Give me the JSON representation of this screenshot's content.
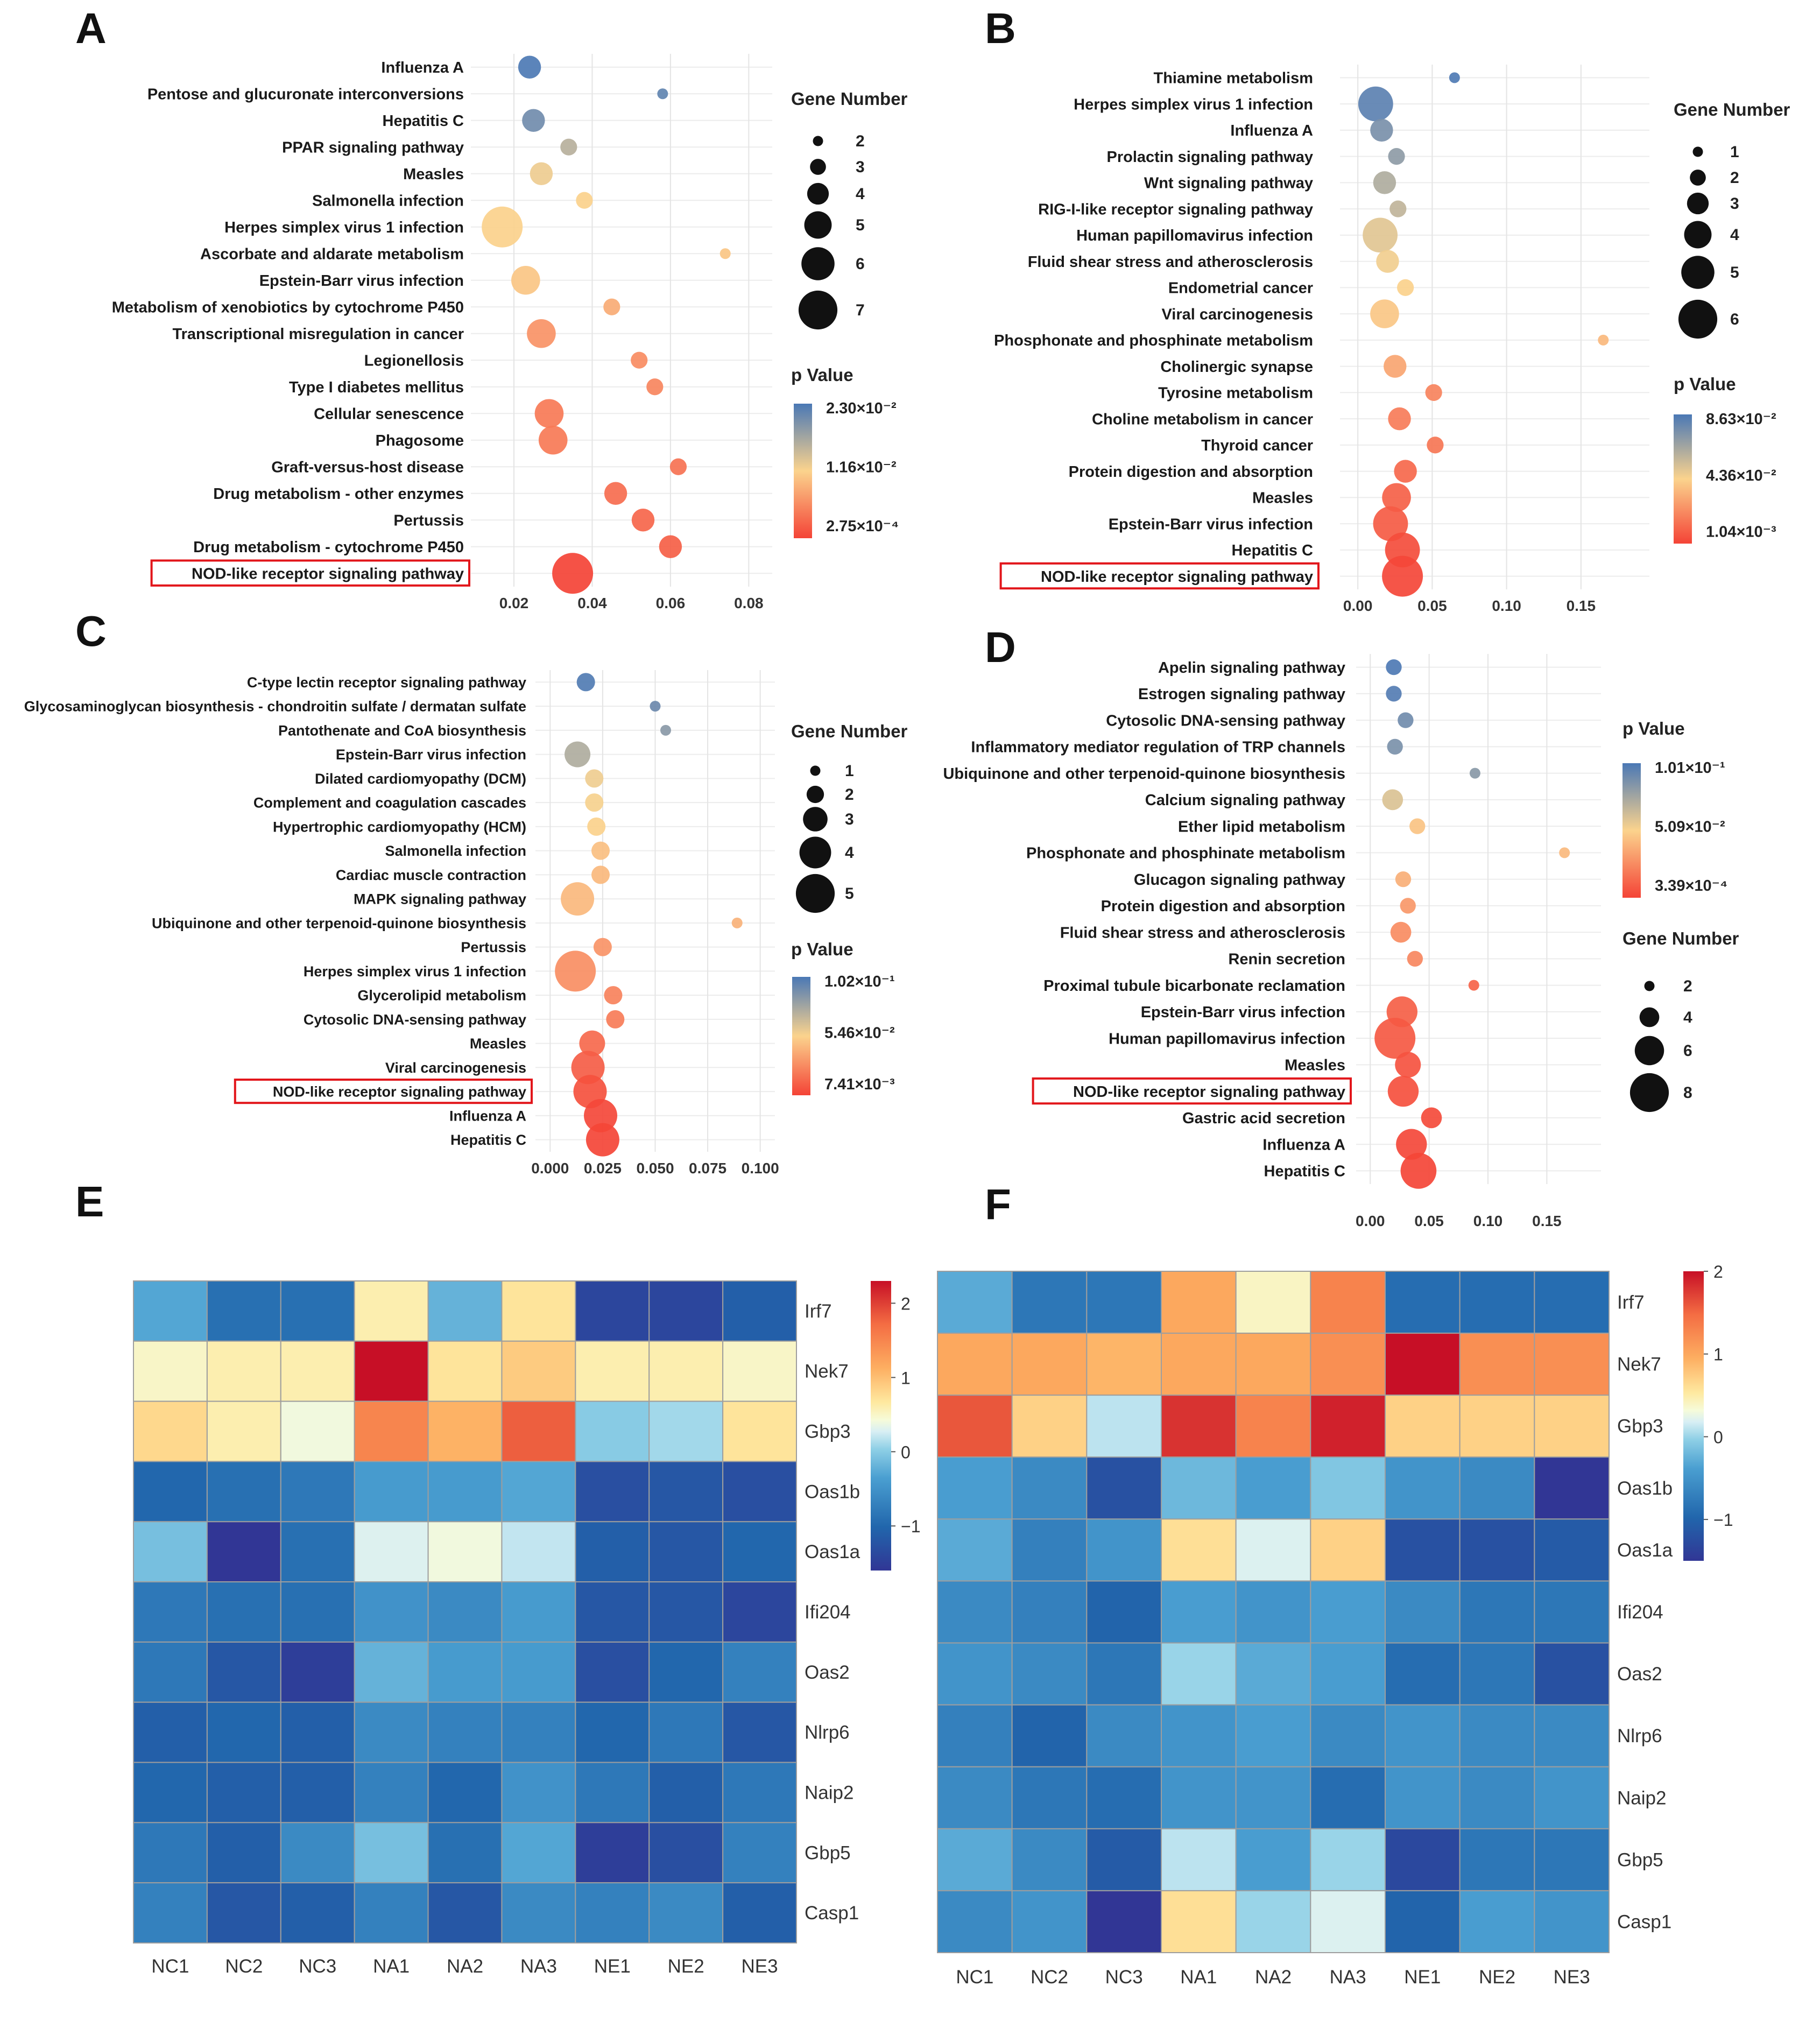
{
  "figure": {
    "panel_letters": [
      "A",
      "B",
      "C",
      "D",
      "E",
      "F"
    ]
  },
  "colors": {
    "low_p": "#f44336",
    "mid_p": "#fbd38d",
    "high_p": "#4a78b5",
    "highlight_box": "#e2161b"
  },
  "chart_data": [
    {
      "panel": "A",
      "type": "scatter",
      "xlabel": "",
      "ylabel": "",
      "xlim": [
        0.009,
        0.086
      ],
      "xticks": [
        0.02,
        0.04,
        0.06,
        0.08
      ],
      "xtick_labels": [
        "0.02",
        "0.04",
        "0.06",
        "0.08"
      ],
      "color_scale": {
        "title": "p Value",
        "min": 0.000275,
        "max": 0.023,
        "labels": [
          "2.30×10⁻²",
          "1.16×10⁻²",
          "2.75×10⁻⁴"
        ]
      },
      "size_scale": {
        "title": "Gene Number",
        "min": 2,
        "max": 7,
        "values": [
          2,
          3,
          4,
          5,
          6,
          7
        ]
      },
      "highlighted": "NOD-like receptor signaling pathway",
      "points": [
        {
          "label": "Influenza A",
          "x": 0.024,
          "p": 0.0228,
          "genes": 4
        },
        {
          "label": "Pentose and glucuronate interconversions",
          "x": 0.058,
          "p": 0.0215,
          "genes": 2
        },
        {
          "label": "Hepatitis C",
          "x": 0.025,
          "p": 0.0205,
          "genes": 4
        },
        {
          "label": "PPAR signaling pathway",
          "x": 0.034,
          "p": 0.016,
          "genes": 3
        },
        {
          "label": "Measles",
          "x": 0.027,
          "p": 0.0125,
          "genes": 4
        },
        {
          "label": "Salmonella infection",
          "x": 0.038,
          "p": 0.0115,
          "genes": 3
        },
        {
          "label": "Herpes simplex virus 1 infection",
          "x": 0.017,
          "p": 0.0115,
          "genes": 7
        },
        {
          "label": "Ascorbate and aldarate metabolism",
          "x": 0.074,
          "p": 0.0105,
          "genes": 2
        },
        {
          "label": "Epstein-Barr virus infection",
          "x": 0.023,
          "p": 0.0105,
          "genes": 5
        },
        {
          "label": "Metabolism of xenobiotics by cytochrome P450",
          "x": 0.045,
          "p": 0.0085,
          "genes": 3
        },
        {
          "label": "Transcriptional misregulation in cancer",
          "x": 0.027,
          "p": 0.0065,
          "genes": 5
        },
        {
          "label": "Legionellosis",
          "x": 0.052,
          "p": 0.006,
          "genes": 3
        },
        {
          "label": "Type I diabetes mellitus",
          "x": 0.056,
          "p": 0.0055,
          "genes": 3
        },
        {
          "label": "Cellular senescence",
          "x": 0.029,
          "p": 0.0045,
          "genes": 5
        },
        {
          "label": "Phagosome",
          "x": 0.03,
          "p": 0.0045,
          "genes": 5
        },
        {
          "label": "Graft-versus-host disease",
          "x": 0.062,
          "p": 0.004,
          "genes": 3
        },
        {
          "label": "Drug metabolism - other enzymes",
          "x": 0.046,
          "p": 0.0035,
          "genes": 4
        },
        {
          "label": "Pertussis",
          "x": 0.053,
          "p": 0.003,
          "genes": 4
        },
        {
          "label": "Drug metabolism - cytochrome P450",
          "x": 0.06,
          "p": 0.0025,
          "genes": 4
        },
        {
          "label": "NOD-like receptor signaling pathway",
          "x": 0.035,
          "p": 0.0003,
          "genes": 7
        }
      ]
    },
    {
      "panel": "B",
      "type": "scatter",
      "xlabel": "",
      "ylabel": "",
      "xlim": [
        -0.012,
        0.196
      ],
      "xticks": [
        0.0,
        0.05,
        0.1,
        0.15
      ],
      "xtick_labels": [
        "0.00",
        "0.05",
        "0.10",
        "0.15"
      ],
      "color_scale": {
        "title": "p Value",
        "min": 0.00104,
        "max": 0.0863,
        "labels": [
          "8.63×10⁻²",
          "4.36×10⁻²",
          "1.04×10⁻³"
        ]
      },
      "size_scale": {
        "title": "Gene Number",
        "min": 1,
        "max": 6,
        "values": [
          1,
          2,
          3,
          4,
          5,
          6
        ]
      },
      "highlighted": "NOD-like receptor signaling pathway",
      "points": [
        {
          "label": "Thiamine metabolism",
          "x": 0.065,
          "p": 0.085,
          "genes": 1
        },
        {
          "label": "Herpes simplex virus 1 infection",
          "x": 0.012,
          "p": 0.082,
          "genes": 5
        },
        {
          "label": "Influenza A",
          "x": 0.016,
          "p": 0.075,
          "genes": 3
        },
        {
          "label": "Prolactin signaling pathway",
          "x": 0.026,
          "p": 0.07,
          "genes": 2
        },
        {
          "label": "Wnt signaling pathway",
          "x": 0.018,
          "p": 0.062,
          "genes": 3
        },
        {
          "label": "RIG-I-like receptor signaling pathway",
          "x": 0.027,
          "p": 0.058,
          "genes": 2
        },
        {
          "label": "Human papillomavirus infection",
          "x": 0.015,
          "p": 0.05,
          "genes": 5
        },
        {
          "label": "Fluid shear stress and atherosclerosis",
          "x": 0.02,
          "p": 0.046,
          "genes": 3
        },
        {
          "label": "Endometrial cancer",
          "x": 0.032,
          "p": 0.043,
          "genes": 2
        },
        {
          "label": "Viral carcinogenesis",
          "x": 0.018,
          "p": 0.04,
          "genes": 4
        },
        {
          "label": "Phosphonate and phosphinate metabolism",
          "x": 0.165,
          "p": 0.036,
          "genes": 1
        },
        {
          "label": "Cholinergic synapse",
          "x": 0.025,
          "p": 0.03,
          "genes": 3
        },
        {
          "label": "Tyrosine metabolism",
          "x": 0.051,
          "p": 0.02,
          "genes": 2
        },
        {
          "label": "Choline metabolism in cancer",
          "x": 0.028,
          "p": 0.018,
          "genes": 3
        },
        {
          "label": "Thyroid cancer",
          "x": 0.052,
          "p": 0.016,
          "genes": 2
        },
        {
          "label": "Protein digestion and absorption",
          "x": 0.032,
          "p": 0.012,
          "genes": 3
        },
        {
          "label": "Measles",
          "x": 0.026,
          "p": 0.01,
          "genes": 4
        },
        {
          "label": "Epstein-Barr virus infection",
          "x": 0.022,
          "p": 0.008,
          "genes": 5
        },
        {
          "label": "Hepatitis C",
          "x": 0.03,
          "p": 0.004,
          "genes": 5
        },
        {
          "label": "NOD-like receptor signaling pathway",
          "x": 0.03,
          "p": 0.002,
          "genes": 6
        }
      ]
    },
    {
      "panel": "C",
      "type": "scatter",
      "xlabel": "",
      "ylabel": "",
      "xlim": [
        -0.007,
        0.107
      ],
      "xticks": [
        0.0,
        0.025,
        0.05,
        0.075,
        0.1
      ],
      "xtick_labels": [
        "0.000",
        "0.025",
        "0.050",
        "0.075",
        "0.100"
      ],
      "color_scale": {
        "title": "p Value",
        "min": 0.00741,
        "max": 0.102,
        "labels": [
          "1.02×10⁻¹",
          "5.46×10⁻²",
          "7.41×10⁻³"
        ]
      },
      "size_scale": {
        "title": "Gene Number",
        "min": 1,
        "max": 5,
        "values": [
          1,
          2,
          3,
          4,
          5
        ]
      },
      "highlighted": "NOD-like receptor signaling pathway",
      "points": [
        {
          "label": "C-type lectin receptor signaling pathway",
          "x": 0.017,
          "p": 0.1,
          "genes": 2
        },
        {
          "label": "Glycosaminoglycan biosynthesis - chondroitin sulfate / dermatan sulfate",
          "x": 0.05,
          "p": 0.093,
          "genes": 1
        },
        {
          "label": "Pantothenate and CoA biosynthesis",
          "x": 0.055,
          "p": 0.085,
          "genes": 1
        },
        {
          "label": "Epstein-Barr virus infection",
          "x": 0.013,
          "p": 0.075,
          "genes": 3
        },
        {
          "label": "Dilated cardiomyopathy (DCM)",
          "x": 0.021,
          "p": 0.058,
          "genes": 2
        },
        {
          "label": "Complement and coagulation cascades",
          "x": 0.021,
          "p": 0.056,
          "genes": 2
        },
        {
          "label": "Hypertrophic cardiomyopathy (HCM)",
          "x": 0.022,
          "p": 0.054,
          "genes": 2
        },
        {
          "label": "Salmonella infection",
          "x": 0.024,
          "p": 0.048,
          "genes": 2
        },
        {
          "label": "Cardiac muscle contraction",
          "x": 0.024,
          "p": 0.046,
          "genes": 2
        },
        {
          "label": "MAPK signaling pathway",
          "x": 0.013,
          "p": 0.046,
          "genes": 4
        },
        {
          "label": "Ubiquinone and other terpenoid-quinone biosynthesis",
          "x": 0.089,
          "p": 0.044,
          "genes": 1
        },
        {
          "label": "Pertussis",
          "x": 0.025,
          "p": 0.034,
          "genes": 2
        },
        {
          "label": "Herpes simplex virus 1 infection",
          "x": 0.012,
          "p": 0.032,
          "genes": 5
        },
        {
          "label": "Glycerolipid metabolism",
          "x": 0.03,
          "p": 0.028,
          "genes": 2
        },
        {
          "label": "Cytosolic DNA-sensing pathway",
          "x": 0.031,
          "p": 0.026,
          "genes": 2
        },
        {
          "label": "Measles",
          "x": 0.02,
          "p": 0.02,
          "genes": 3
        },
        {
          "label": "Viral carcinogenesis",
          "x": 0.018,
          "p": 0.016,
          "genes": 4
        },
        {
          "label": "NOD-like receptor signaling pathway",
          "x": 0.019,
          "p": 0.012,
          "genes": 4
        },
        {
          "label": "Influenza A",
          "x": 0.024,
          "p": 0.009,
          "genes": 4
        },
        {
          "label": "Hepatitis C",
          "x": 0.025,
          "p": 0.008,
          "genes": 4
        }
      ]
    },
    {
      "panel": "D",
      "type": "scatter",
      "xlabel": "",
      "ylabel": "",
      "xlim": [
        -0.012,
        0.196
      ],
      "xticks": [
        0.0,
        0.05,
        0.1,
        0.15
      ],
      "xtick_labels": [
        "0.00",
        "0.05",
        "0.10",
        "0.15"
      ],
      "color_scale": {
        "title": "p Value",
        "min": 0.000339,
        "max": 0.101,
        "labels": [
          "1.01×10⁻¹",
          "5.09×10⁻²",
          "3.39×10⁻⁴"
        ]
      },
      "size_scale": {
        "title": "Gene Number",
        "min": 2,
        "max": 8,
        "values": [
          2,
          4,
          6,
          8
        ]
      },
      "highlighted": "NOD-like receptor signaling pathway",
      "points": [
        {
          "label": "Apelin signaling pathway",
          "x": 0.02,
          "p": 0.1,
          "genes": 3
        },
        {
          "label": "Estrogen signaling pathway",
          "x": 0.02,
          "p": 0.098,
          "genes": 3
        },
        {
          "label": "Cytosolic DNA-sensing pathway",
          "x": 0.03,
          "p": 0.09,
          "genes": 3
        },
        {
          "label": "Inflammatory mediator regulation of TRP channels",
          "x": 0.021,
          "p": 0.087,
          "genes": 3
        },
        {
          "label": "Ubiquinone and other terpenoid-quinone biosynthesis",
          "x": 0.089,
          "p": 0.083,
          "genes": 2
        },
        {
          "label": "Calcium signaling pathway",
          "x": 0.019,
          "p": 0.06,
          "genes": 4
        },
        {
          "label": "Ether lipid metabolism",
          "x": 0.04,
          "p": 0.045,
          "genes": 3
        },
        {
          "label": "Phosphonate and phosphinate metabolism",
          "x": 0.165,
          "p": 0.042,
          "genes": 2
        },
        {
          "label": "Glucagon signaling pathway",
          "x": 0.028,
          "p": 0.038,
          "genes": 3
        },
        {
          "label": "Protein digestion and absorption",
          "x": 0.032,
          "p": 0.03,
          "genes": 3
        },
        {
          "label": "Fluid shear stress and atherosclerosis",
          "x": 0.026,
          "p": 0.026,
          "genes": 4
        },
        {
          "label": "Renin secretion",
          "x": 0.038,
          "p": 0.024,
          "genes": 3
        },
        {
          "label": "Proximal tubule bicarbonate reclamation",
          "x": 0.088,
          "p": 0.012,
          "genes": 2
        },
        {
          "label": "Epstein-Barr virus infection",
          "x": 0.027,
          "p": 0.01,
          "genes": 6
        },
        {
          "label": "Human papillomavirus infection",
          "x": 0.021,
          "p": 0.008,
          "genes": 8
        },
        {
          "label": "Measles",
          "x": 0.032,
          "p": 0.006,
          "genes": 5
        },
        {
          "label": "NOD-like receptor signaling pathway",
          "x": 0.028,
          "p": 0.005,
          "genes": 6
        },
        {
          "label": "Gastric acid secretion",
          "x": 0.052,
          "p": 0.003,
          "genes": 4
        },
        {
          "label": "Influenza A",
          "x": 0.035,
          "p": 0.002,
          "genes": 6
        },
        {
          "label": "Hepatitis C",
          "x": 0.041,
          "p": 0.001,
          "genes": 7
        }
      ]
    },
    {
      "panel": "E",
      "type": "heatmap",
      "columns": [
        "NC1",
        "NC2",
        "NC3",
        "NA1",
        "NA2",
        "NA3",
        "NE1",
        "NE2",
        "NE3"
      ],
      "rows": [
        "Irf7",
        "Nek7",
        "Gbp3",
        "Oas1b",
        "Oas1a",
        "Ifi204",
        "Oas2",
        "Nlrp6",
        "Naip2",
        "Gbp5",
        "Casp1"
      ],
      "legend_ticks": [
        2,
        1,
        0,
        -1
      ],
      "legend_labels": [
        "2",
        "1",
        "0",
        "−1"
      ],
      "range": [
        -1.6,
        2.3
      ],
      "values": [
        [
          -0.3,
          -0.9,
          -0.9,
          0.6,
          -0.2,
          0.7,
          -1.4,
          -1.4,
          -1.1
        ],
        [
          0.5,
          0.6,
          0.6,
          2.3,
          0.7,
          0.9,
          0.6,
          0.6,
          0.5
        ],
        [
          0.8,
          0.6,
          0.4,
          1.5,
          1.1,
          1.8,
          0.0,
          0.1,
          0.7
        ],
        [
          -1.0,
          -0.9,
          -0.8,
          -0.4,
          -0.4,
          -0.3,
          -1.3,
          -1.2,
          -1.3
        ],
        [
          -0.1,
          -1.6,
          -0.9,
          0.3,
          0.4,
          0.2,
          -1.1,
          -1.2,
          -1.0
        ],
        [
          -0.8,
          -0.9,
          -0.9,
          -0.5,
          -0.6,
          -0.4,
          -1.2,
          -1.2,
          -1.4
        ],
        [
          -0.8,
          -1.2,
          -1.5,
          -0.2,
          -0.4,
          -0.4,
          -1.3,
          -1.0,
          -0.7
        ],
        [
          -1.1,
          -1.0,
          -1.1,
          -0.6,
          -0.7,
          -0.7,
          -1.0,
          -0.8,
          -1.2
        ],
        [
          -1.0,
          -1.1,
          -1.1,
          -0.7,
          -1.0,
          -0.5,
          -0.8,
          -1.1,
          -0.8
        ],
        [
          -0.8,
          -1.1,
          -0.6,
          -0.1,
          -0.9,
          -0.3,
          -1.5,
          -1.3,
          -0.7
        ],
        [
          -0.7,
          -1.2,
          -1.1,
          -0.7,
          -1.2,
          -0.6,
          -0.7,
          -0.6,
          -1.1
        ]
      ]
    },
    {
      "panel": "F",
      "type": "heatmap",
      "columns": [
        "NC1",
        "NC2",
        "NC3",
        "NA1",
        "NA2",
        "NA3",
        "NE1",
        "NE2",
        "NE3"
      ],
      "rows": [
        "Irf7",
        "Nek7",
        "Gbp3",
        "Oas1b",
        "Oas1a",
        "Ifi204",
        "Oas2",
        "Nlrp6",
        "Naip2",
        "Gbp5",
        "Casp1"
      ],
      "legend_ticks": [
        2,
        1,
        0,
        -1
      ],
      "legend_labels": [
        "2",
        "1",
        "0",
        "−1"
      ],
      "range": [
        -1.5,
        2.0
      ],
      "values": [
        [
          -0.3,
          -0.8,
          -0.8,
          1.0,
          0.4,
          1.3,
          -0.9,
          -0.9,
          -0.9
        ],
        [
          1.0,
          1.0,
          0.9,
          1.0,
          1.0,
          1.2,
          2.0,
          1.2,
          1.2
        ],
        [
          1.6,
          0.7,
          0.1,
          1.8,
          1.3,
          1.9,
          0.7,
          0.7,
          0.7
        ],
        [
          -0.4,
          -0.6,
          -1.2,
          -0.2,
          -0.4,
          -0.1,
          -0.5,
          -0.6,
          -1.5
        ],
        [
          -0.3,
          -0.7,
          -0.5,
          0.6,
          0.2,
          0.7,
          -1.2,
          -1.2,
          -1.1
        ],
        [
          -0.6,
          -0.7,
          -1.0,
          -0.4,
          -0.5,
          -0.4,
          -0.6,
          -0.8,
          -0.8
        ],
        [
          -0.5,
          -0.6,
          -0.8,
          0.0,
          -0.3,
          -0.4,
          -0.9,
          -0.8,
          -1.2
        ],
        [
          -0.7,
          -1.0,
          -0.6,
          -0.5,
          -0.4,
          -0.6,
          -0.5,
          -0.6,
          -0.6
        ],
        [
          -0.6,
          -0.8,
          -0.9,
          -0.5,
          -0.5,
          -0.9,
          -0.5,
          -0.6,
          -0.5
        ],
        [
          -0.3,
          -0.6,
          -1.1,
          0.1,
          -0.4,
          0.0,
          -1.3,
          -0.8,
          -0.8
        ],
        [
          -0.6,
          -0.5,
          -1.5,
          0.6,
          0.0,
          0.2,
          -1.0,
          -0.4,
          -0.5
        ]
      ]
    }
  ]
}
